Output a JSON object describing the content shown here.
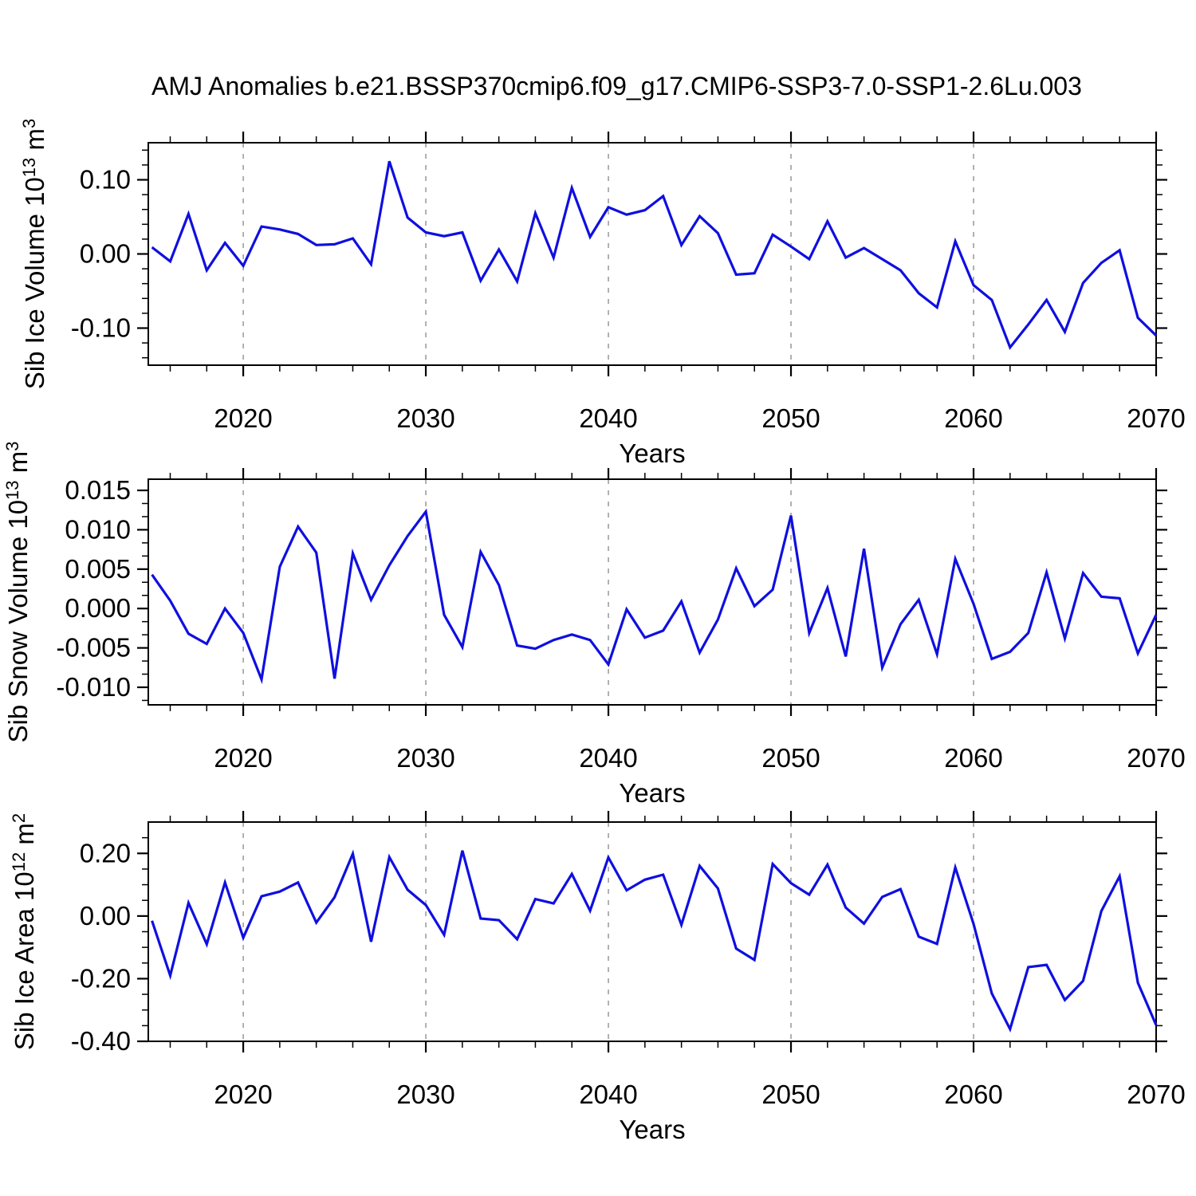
{
  "title": "AMJ Anomalies b.e21.BSSP370cmip6.f09_g17.CMIP6-SSP3-7.0-SSP1-2.6Lu.003",
  "colors": {
    "line": "#0f0fe0",
    "grid": "#7d7d7d",
    "axis": "#000000",
    "background": "#ffffff"
  },
  "chart_data": [
    {
      "type": "line",
      "ylabel": "Sib Ice Volume 10^13 m^3",
      "ylabel_parts": [
        {
          "t": "Sib Ice Volume 10",
          "sup": false
        },
        {
          "t": "13",
          "sup": true
        },
        {
          "t": " m",
          "sup": false
        },
        {
          "t": "3",
          "sup": true
        }
      ],
      "xlabel": "Years",
      "ylim": [
        -0.15,
        0.15
      ],
      "yticks": [
        0.1,
        0.0,
        -0.1
      ],
      "ytick_labels": [
        "0.10",
        "0.00",
        "-0.10"
      ],
      "yminor_step": 0.02,
      "xlim": [
        2014.8,
        2070
      ],
      "xticks": [
        2020,
        2030,
        2040,
        2050,
        2060,
        2070
      ],
      "xtick_labels": [
        "2020",
        "2030",
        "2040",
        "2050",
        "2060",
        "2070"
      ],
      "xminor_step": 2,
      "grid_years": [
        2020,
        2030,
        2040,
        2050,
        2060
      ],
      "grid_on": true,
      "legend": "none",
      "x": [
        2015,
        2016,
        2017,
        2018,
        2019,
        2020,
        2021,
        2022,
        2023,
        2024,
        2025,
        2026,
        2027,
        2028,
        2029,
        2030,
        2031,
        2032,
        2033,
        2034,
        2035,
        2036,
        2037,
        2038,
        2039,
        2040,
        2041,
        2042,
        2043,
        2044,
        2045,
        2046,
        2047,
        2048,
        2049,
        2050,
        2051,
        2052,
        2053,
        2054,
        2055,
        2056,
        2057,
        2058,
        2059,
        2060,
        2061,
        2062,
        2063,
        2064,
        2065,
        2066,
        2067,
        2068,
        2069,
        2070
      ],
      "values": [
        0.009,
        -0.01,
        0.054,
        -0.022,
        0.015,
        -0.016,
        0.037,
        0.033,
        0.027,
        0.012,
        0.013,
        0.021,
        -0.014,
        0.125,
        0.049,
        0.029,
        0.024,
        0.029,
        -0.036,
        0.006,
        -0.037,
        0.055,
        -0.005,
        0.089,
        0.023,
        0.063,
        0.053,
        0.059,
        0.078,
        0.012,
        0.051,
        0.028,
        -0.028,
        -0.026,
        0.026,
        0.01,
        -0.007,
        0.044,
        -0.005,
        0.008,
        -0.007,
        -0.022,
        -0.053,
        -0.072,
        0.017,
        -0.042,
        -0.062,
        -0.126,
        -0.095,
        -0.062,
        -0.105,
        -0.039,
        -0.012,
        0.005,
        -0.086,
        -0.11
      ]
    },
    {
      "type": "line",
      "ylabel": "Sib Snow Volume 10^13 m^3",
      "ylabel_parts": [
        {
          "t": "Sib Snow Volume 10",
          "sup": false
        },
        {
          "t": "13",
          "sup": true
        },
        {
          "t": " m",
          "sup": false
        },
        {
          "t": "3",
          "sup": true
        }
      ],
      "xlabel": "Years",
      "ylim": [
        -0.01223,
        0.01642
      ],
      "yticks": [
        0.015,
        0.01,
        0.005,
        0.0,
        -0.005,
        -0.01
      ],
      "ytick_labels": [
        "0.015",
        "0.010",
        "0.005",
        "0.000",
        "-0.005",
        "-0.010"
      ],
      "yminor_step": 0.0016667,
      "xlim": [
        2014.8,
        2070
      ],
      "xticks": [
        2020,
        2030,
        2040,
        2050,
        2060,
        2070
      ],
      "xtick_labels": [
        "2020",
        "2030",
        "2040",
        "2050",
        "2060",
        "2070"
      ],
      "xminor_step": 2,
      "grid_years": [
        2020,
        2030,
        2040,
        2050,
        2060
      ],
      "grid_on": true,
      "legend": "none",
      "x": [
        2015,
        2016,
        2017,
        2018,
        2019,
        2020,
        2021,
        2022,
        2023,
        2024,
        2025,
        2026,
        2027,
        2028,
        2029,
        2030,
        2031,
        2032,
        2033,
        2034,
        2035,
        2036,
        2037,
        2038,
        2039,
        2040,
        2041,
        2042,
        2043,
        2044,
        2045,
        2046,
        2047,
        2048,
        2049,
        2050,
        2051,
        2052,
        2053,
        2054,
        2055,
        2056,
        2057,
        2058,
        2059,
        2060,
        2061,
        2062,
        2063,
        2064,
        2065,
        2066,
        2067,
        2068,
        2069,
        2070
      ],
      "values": [
        0.0043,
        0.001,
        -0.0032,
        -0.0045,
        0.0,
        -0.0031,
        -0.009,
        0.0053,
        0.0104,
        0.0071,
        -0.0089,
        0.007,
        0.0011,
        0.0055,
        0.0092,
        0.0123,
        -0.0008,
        -0.0049,
        0.0072,
        0.003,
        -0.0047,
        -0.0051,
        -0.004,
        -0.0033,
        -0.004,
        -0.0071,
        -0.0001,
        -0.0037,
        -0.0028,
        0.0009,
        -0.0056,
        -0.0014,
        0.0051,
        0.0003,
        0.0024,
        0.0118,
        -0.0031,
        0.0026,
        -0.0061,
        0.0076,
        -0.0075,
        -0.002,
        0.0011,
        -0.0058,
        0.0063,
        0.0006,
        -0.0064,
        -0.0055,
        -0.0031,
        0.0046,
        -0.0038,
        0.0045,
        0.0015,
        0.0013,
        -0.0057,
        -0.0008
      ]
    },
    {
      "type": "line",
      "ylabel": "Sib Ice Area 10^12 m^2",
      "ylabel_parts": [
        {
          "t": "Sib Ice Area 10",
          "sup": false
        },
        {
          "t": "12",
          "sup": true
        },
        {
          "t": " m",
          "sup": false
        },
        {
          "t": "2",
          "sup": true
        }
      ],
      "xlabel": "Years",
      "ylim": [
        -0.4,
        0.3
      ],
      "yticks": [
        0.2,
        0.0,
        -0.2,
        -0.4
      ],
      "ytick_labels": [
        "0.20",
        "0.00",
        "-0.20",
        "-0.40"
      ],
      "yminor_step": 0.05,
      "xlim": [
        2014.8,
        2070
      ],
      "xticks": [
        2020,
        2030,
        2040,
        2050,
        2060,
        2070
      ],
      "xtick_labels": [
        "2020",
        "2030",
        "2040",
        "2050",
        "2060",
        "2070"
      ],
      "xminor_step": 2,
      "grid_years": [
        2020,
        2030,
        2040,
        2050,
        2060
      ],
      "grid_on": true,
      "legend": "none",
      "x": [
        2015,
        2016,
        2017,
        2018,
        2019,
        2020,
        2021,
        2022,
        2023,
        2024,
        2025,
        2026,
        2027,
        2028,
        2029,
        2030,
        2031,
        2032,
        2033,
        2034,
        2035,
        2036,
        2037,
        2038,
        2039,
        2040,
        2041,
        2042,
        2043,
        2044,
        2045,
        2046,
        2047,
        2048,
        2049,
        2050,
        2051,
        2052,
        2053,
        2054,
        2055,
        2056,
        2057,
        2058,
        2059,
        2060,
        2061,
        2062,
        2063,
        2064,
        2065,
        2066,
        2067,
        2068,
        2069,
        2070
      ],
      "values": [
        -0.015,
        -0.19,
        0.042,
        -0.09,
        0.107,
        -0.069,
        0.063,
        0.078,
        0.107,
        -0.021,
        0.06,
        0.199,
        -0.082,
        0.188,
        0.084,
        0.035,
        -0.06,
        0.209,
        -0.008,
        -0.013,
        -0.074,
        0.054,
        0.04,
        0.134,
        0.017,
        0.187,
        0.082,
        0.116,
        0.132,
        -0.028,
        0.16,
        0.088,
        -0.104,
        -0.14,
        0.166,
        0.105,
        0.068,
        0.164,
        0.027,
        -0.024,
        0.061,
        0.086,
        -0.066,
        -0.089,
        0.155,
        -0.025,
        -0.247,
        -0.361,
        -0.163,
        -0.156,
        -0.268,
        -0.207,
        0.016,
        0.127,
        -0.213,
        -0.348
      ]
    }
  ]
}
